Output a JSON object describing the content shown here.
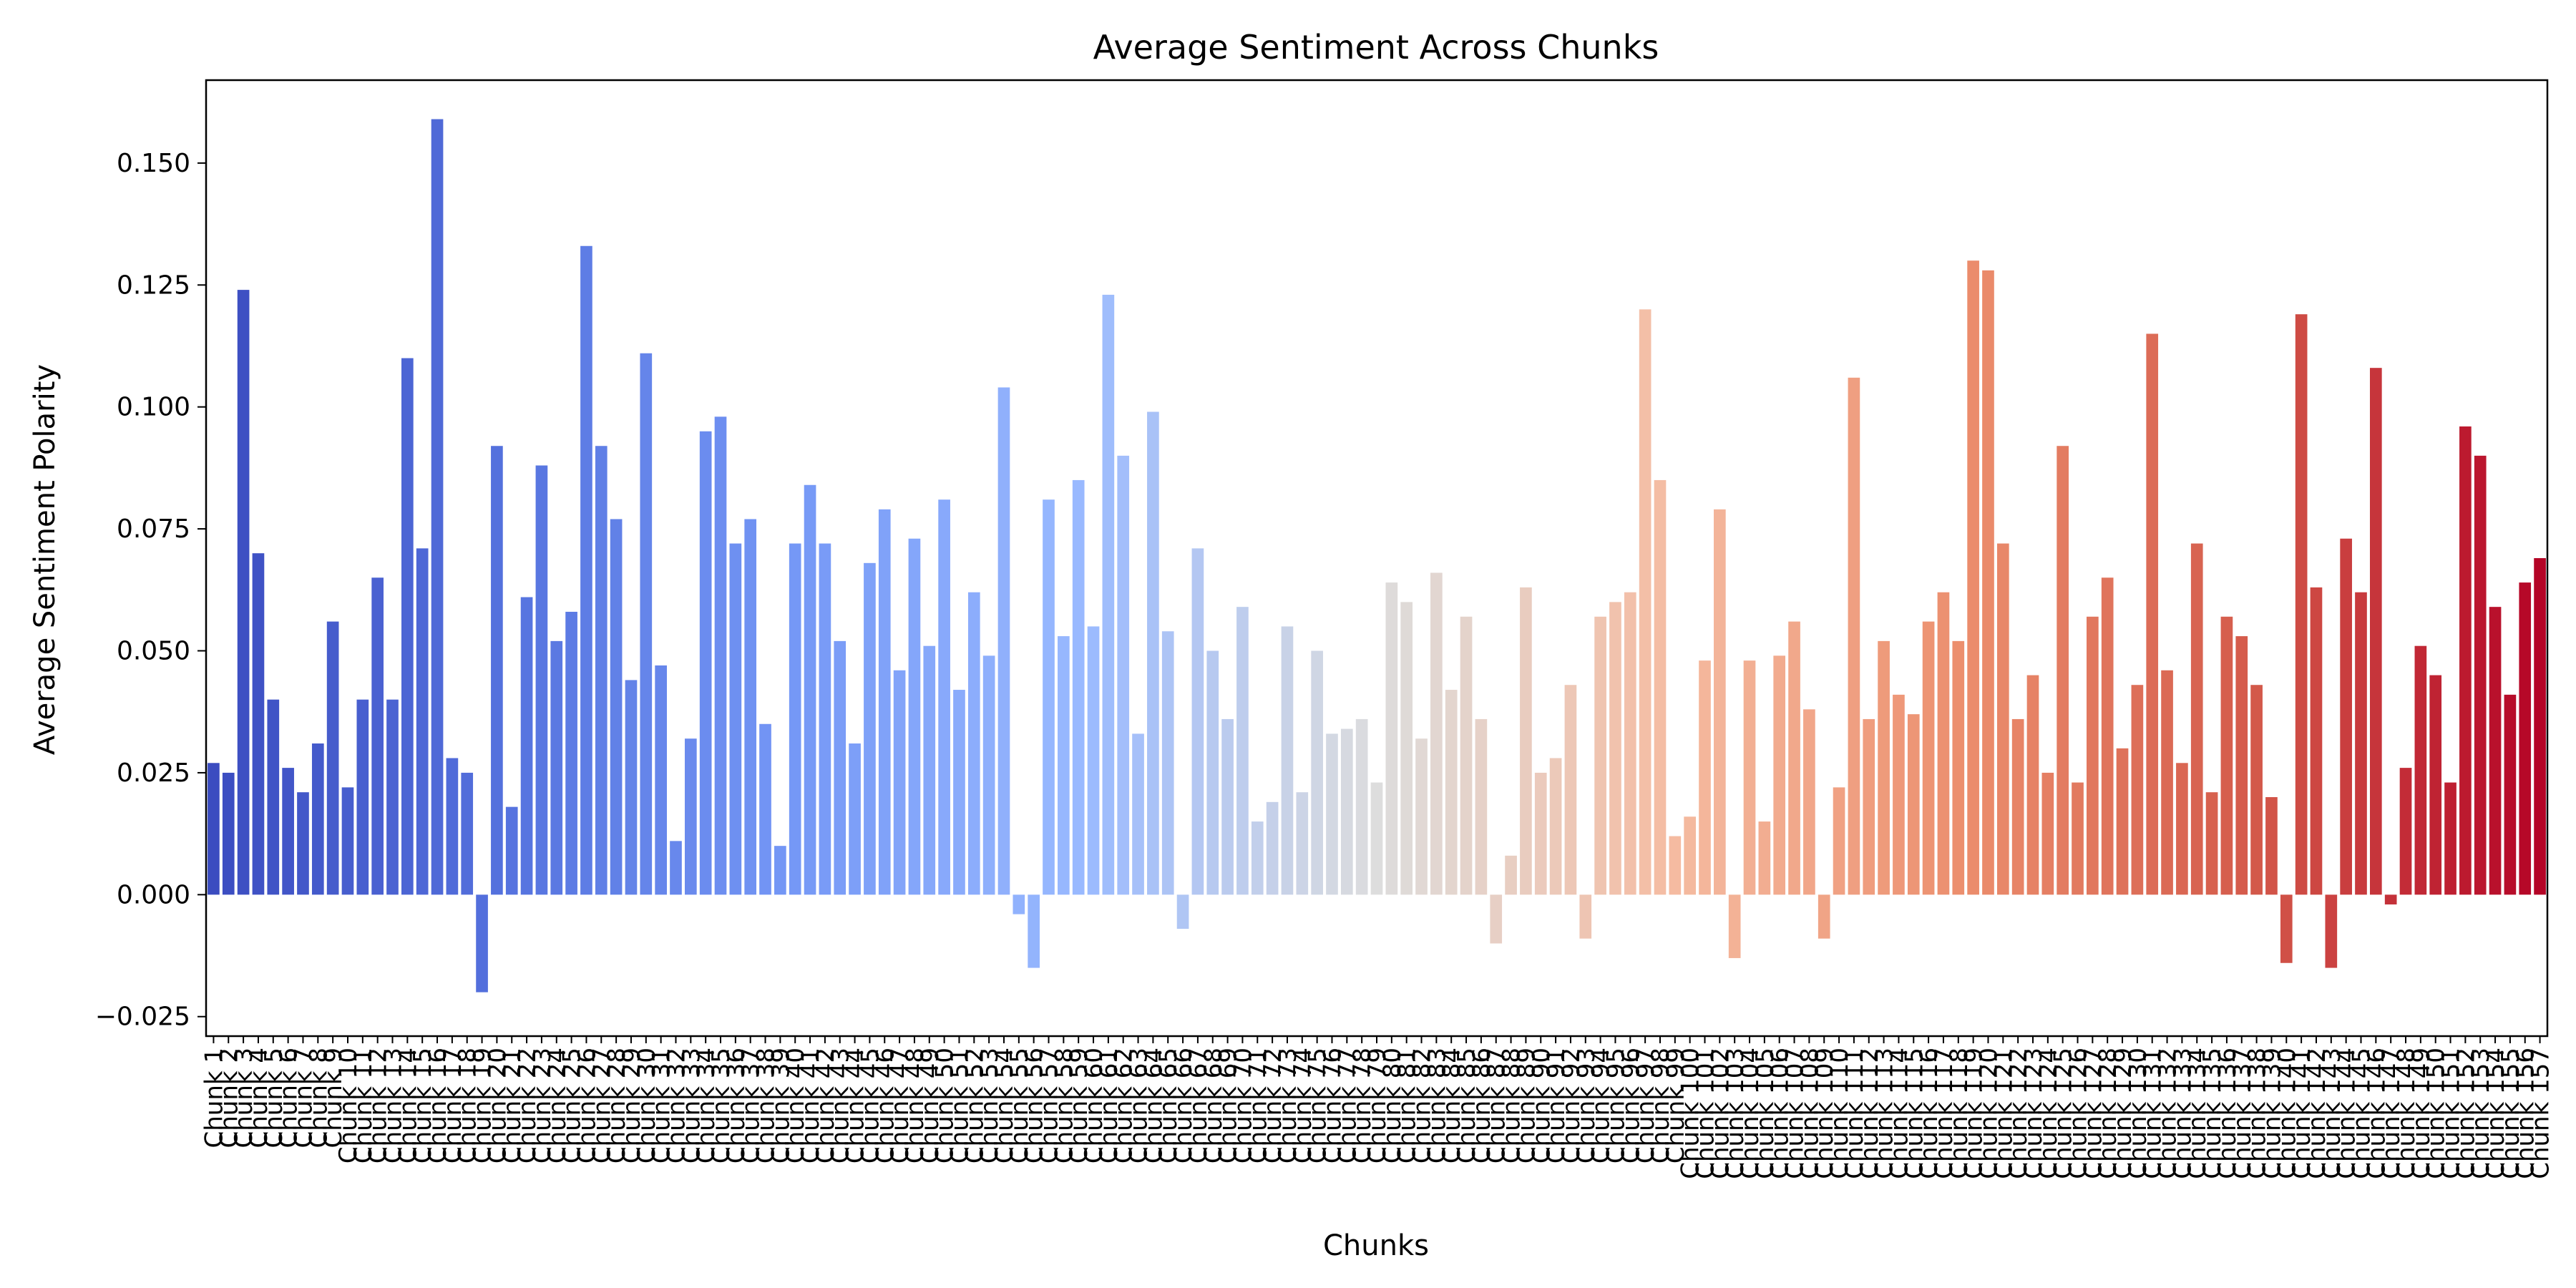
{
  "chart_data": {
    "type": "bar",
    "title": "Average Sentiment Across Chunks",
    "xlabel": "Chunks",
    "ylabel": "Average Sentiment Polarity",
    "ylim": [
      -0.029,
      0.167
    ],
    "yticks": [
      -0.025,
      0.0,
      0.025,
      0.05,
      0.075,
      0.1,
      0.125,
      0.15
    ],
    "ytick_labels": [
      "−0.025",
      "0.000",
      "0.025",
      "0.050",
      "0.075",
      "0.100",
      "0.125",
      "0.150"
    ],
    "colormap": "coolwarm",
    "grid": false,
    "category_prefix": "Chunk",
    "values": [
      0.027,
      0.025,
      0.124,
      0.07,
      0.04,
      0.026,
      0.021,
      0.031,
      0.056,
      0.022,
      0.04,
      0.065,
      0.04,
      0.11,
      0.071,
      0.159,
      0.028,
      0.025,
      -0.02,
      0.092,
      0.018,
      0.061,
      0.088,
      0.052,
      0.058,
      0.133,
      0.092,
      0.077,
      0.044,
      0.111,
      0.047,
      0.011,
      0.032,
      0.095,
      0.098,
      0.072,
      0.077,
      0.035,
      0.01,
      0.072,
      0.084,
      0.072,
      0.052,
      0.031,
      0.068,
      0.079,
      0.046,
      0.073,
      0.051,
      0.081,
      0.042,
      0.062,
      0.049,
      0.104,
      -0.004,
      -0.015,
      0.081,
      0.053,
      0.085,
      0.055,
      0.123,
      0.09,
      0.033,
      0.099,
      0.054,
      -0.007,
      0.071,
      0.05,
      0.036,
      0.059,
      0.015,
      0.019,
      0.055,
      0.021,
      0.05,
      0.033,
      0.034,
      0.036,
      0.023,
      0.064,
      0.06,
      0.032,
      0.066,
      0.042,
      0.057,
      0.036,
      -0.01,
      0.008,
      0.063,
      0.025,
      0.028,
      0.043,
      -0.009,
      0.057,
      0.06,
      0.062,
      0.12,
      0.085,
      0.012,
      0.016,
      0.048,
      0.079,
      -0.013,
      0.048,
      0.015,
      0.049,
      0.056,
      0.038,
      -0.009,
      0.022,
      0.106,
      0.036,
      0.052,
      0.041,
      0.037,
      0.056,
      0.062,
      0.052,
      0.13,
      0.128,
      0.072,
      0.036,
      0.045,
      0.025,
      0.092,
      0.023,
      0.057,
      0.065,
      0.03,
      0.043,
      0.115,
      0.046,
      0.027,
      0.072,
      0.021,
      0.057,
      0.053,
      0.043,
      0.02,
      -0.014,
      0.119,
      0.063,
      -0.015,
      0.073,
      0.062,
      0.108,
      -0.002,
      0.026,
      0.051,
      0.045,
      0.023,
      0.096,
      0.09,
      0.059,
      0.041,
      0.064,
      0.069
    ]
  }
}
